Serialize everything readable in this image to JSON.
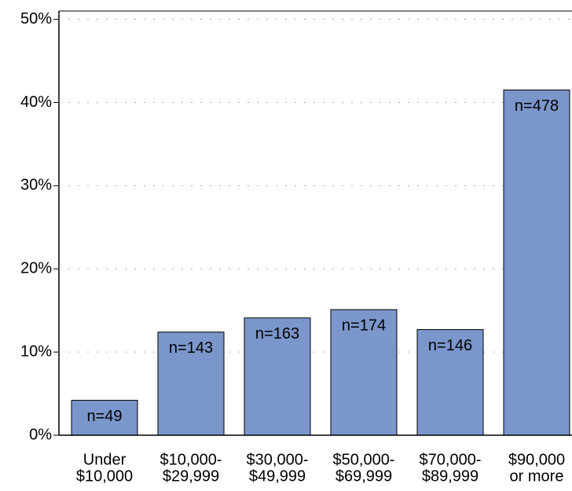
{
  "chart_data": {
    "type": "bar",
    "categories": [
      [
        "Under",
        "$10,000"
      ],
      [
        "$10,000-",
        "$29,999"
      ],
      [
        "$30,000-",
        "$49,999"
      ],
      [
        "$50,000-",
        "$69,999"
      ],
      [
        "$70,000-",
        "$89,999"
      ],
      [
        "$90,000",
        "or more"
      ]
    ],
    "values": [
      4.2,
      12.4,
      14.1,
      15.1,
      12.7,
      41.5
    ],
    "bar_labels": [
      "n=49",
      "n=143",
      "n=163",
      "n=174",
      "n=146",
      "n=478"
    ],
    "color": "#7b96cb",
    "ylim": [
      0,
      51
    ],
    "yticks": [
      {
        "value": 0,
        "label": "0%"
      },
      {
        "value": 10,
        "label": "10%"
      },
      {
        "value": 20,
        "label": "20%"
      },
      {
        "value": 30,
        "label": "30%"
      },
      {
        "value": 40,
        "label": "40%"
      },
      {
        "value": 50,
        "label": "50%"
      }
    ],
    "grid": true
  }
}
